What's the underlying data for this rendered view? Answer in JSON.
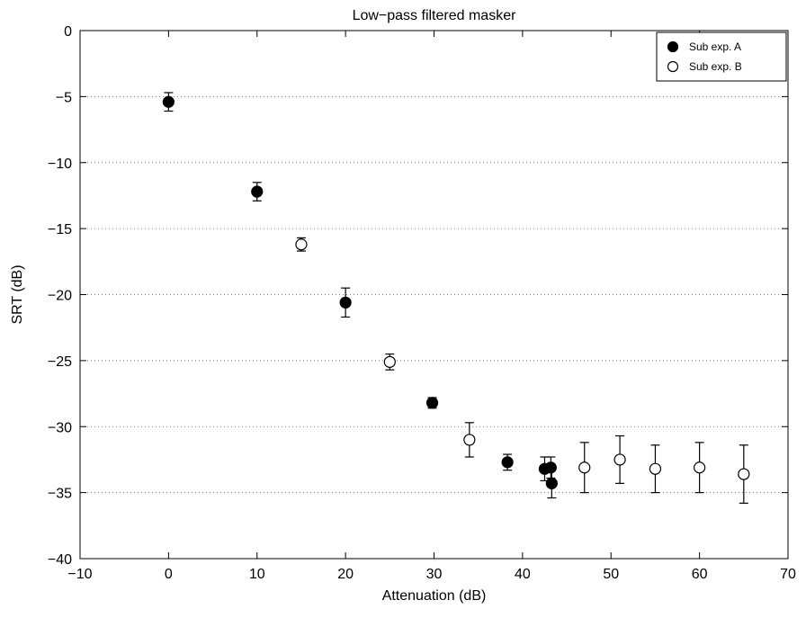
{
  "chart_data": {
    "type": "scatter",
    "title": "Low−pass filtered masker",
    "xlabel": "Attenuation (dB)",
    "ylabel": "SRT (dB)",
    "xlim": [
      -10,
      70
    ],
    "ylim": [
      -40,
      0
    ],
    "xticks": [
      -10,
      0,
      10,
      20,
      30,
      40,
      50,
      60,
      70
    ],
    "yticks": [
      0,
      -5,
      -10,
      -15,
      -20,
      -25,
      -30,
      -35,
      -40
    ],
    "xtick_labels": [
      "−10",
      "0",
      "10",
      "20",
      "30",
      "40",
      "50",
      "60",
      "70"
    ],
    "ytick_labels": [
      "0",
      "−5",
      "−10",
      "−15",
      "−20",
      "−25",
      "−30",
      "−35",
      "−40"
    ],
    "grid": "horizontal dotted",
    "legend_position": "top-right",
    "error_bars": true,
    "series": [
      {
        "name": "Sub exp. A",
        "marker": "filled-circle",
        "color": "#000000",
        "points": [
          {
            "x": 0,
            "y": -5.4,
            "err_low": 0.7,
            "err_high": 0.7
          },
          {
            "x": 10,
            "y": -12.2,
            "err_low": 0.7,
            "err_high": 0.7
          },
          {
            "x": 20,
            "y": -20.6,
            "err_low": 1.1,
            "err_high": 1.1
          },
          {
            "x": 29.8,
            "y": -28.2,
            "err_low": 0.4,
            "err_high": 0.4
          },
          {
            "x": 38.3,
            "y": -32.7,
            "err_low": 0.6,
            "err_high": 0.6
          },
          {
            "x": 42.5,
            "y": -33.2,
            "err_low": 0.9,
            "err_high": 0.9
          },
          {
            "x": 43.2,
            "y": -33.1,
            "err_low": 0.8,
            "err_high": 0.8
          },
          {
            "x": 43.3,
            "y": -34.3,
            "err_low": 1.1,
            "err_high": 1.1
          }
        ]
      },
      {
        "name": "Sub exp. B",
        "marker": "open-circle",
        "color": "#000000",
        "points": [
          {
            "x": 15,
            "y": -16.2,
            "err_low": 0.5,
            "err_high": 0.5
          },
          {
            "x": 25,
            "y": -25.1,
            "err_low": 0.6,
            "err_high": 0.6
          },
          {
            "x": 34,
            "y": -31.0,
            "err_low": 1.3,
            "err_high": 1.3
          },
          {
            "x": 47,
            "y": -33.1,
            "err_low": 1.9,
            "err_high": 1.9
          },
          {
            "x": 51,
            "y": -32.5,
            "err_low": 1.8,
            "err_high": 1.8
          },
          {
            "x": 55,
            "y": -33.2,
            "err_low": 1.8,
            "err_high": 1.8
          },
          {
            "x": 60,
            "y": -33.1,
            "err_low": 1.9,
            "err_high": 1.9
          },
          {
            "x": 65,
            "y": -33.6,
            "err_low": 2.2,
            "err_high": 2.2
          }
        ]
      }
    ]
  }
}
